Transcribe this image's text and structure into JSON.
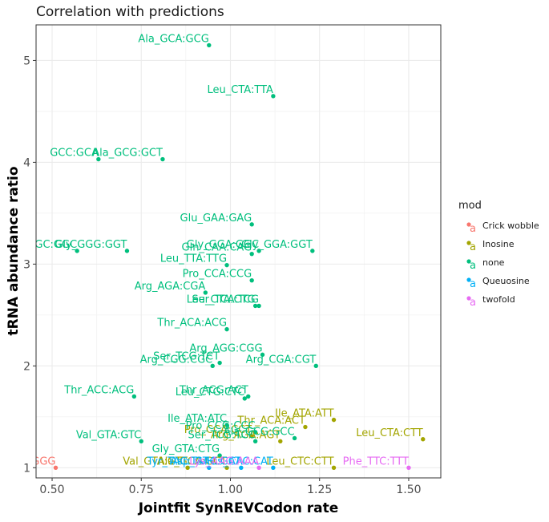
{
  "chart_data": {
    "type": "scatter",
    "title": "Correlation with predictions",
    "xlabel": "Jointfit SynREVCodon rate",
    "ylabel": "tRNA abundance ratio",
    "xlim": [
      0.455,
      1.59
    ],
    "ylim": [
      0.9,
      5.35
    ],
    "xticks": [
      0.5,
      0.75,
      1.0,
      1.25,
      1.5
    ],
    "xtick_labels": [
      "0.50",
      "0.75",
      "1.00",
      "1.25",
      "1.50"
    ],
    "yticks": [
      1,
      2,
      3,
      4,
      5
    ],
    "ytick_labels": [
      "1",
      "2",
      "3",
      "4",
      "5"
    ],
    "grid": true,
    "legend": {
      "title": "mod",
      "placement": "right",
      "key_glyph": "a",
      "entries": [
        {
          "name": "Crick wobble",
          "color": "#F8766D"
        },
        {
          "name": "Inosine",
          "color": "#A3A500"
        },
        {
          "name": "none",
          "color": "#00BF7D"
        },
        {
          "name": "Queuosine",
          "color": "#00B0F6"
        },
        {
          "name": "twofold",
          "color": "#E76BF3"
        }
      ]
    },
    "series": [
      {
        "name": "Crick wobble",
        "color": "#F8766D",
        "points": [
          {
            "x": 0.51,
            "y": 1.0,
            "label": "GGG:GGG"
          }
        ]
      },
      {
        "name": "Inosine",
        "color": "#A3A500",
        "points": [
          {
            "x": 1.54,
            "y": 1.28,
            "label": "Leu_CTA:CTT"
          },
          {
            "x": 1.29,
            "y": 1.47,
            "label": "Ile_ATA:ATT"
          },
          {
            "x": 1.21,
            "y": 1.4,
            "label": "Thr_ACA:ACT"
          },
          {
            "x": 1.14,
            "y": 1.26,
            "label": "Arg_AGA:AGT"
          },
          {
            "x": 1.06,
            "y": 1.31,
            "label": "Pro_CCA:CCT"
          },
          {
            "x": 1.29,
            "y": 1.0,
            "label": "Leu_CTC:CTT"
          },
          {
            "x": 0.88,
            "y": 1.0,
            "label": "Val_GTA:GTT"
          },
          {
            "x": 0.99,
            "y": 1.0,
            "label": "Ala_GCA:GCT"
          }
        ]
      },
      {
        "name": "none",
        "color": "#00BF7D",
        "points": [
          {
            "x": 0.94,
            "y": 5.15,
            "label": "Ala_GCA:GCG"
          },
          {
            "x": 1.12,
            "y": 4.65,
            "label": "Leu_CTA:TTA"
          },
          {
            "x": 0.81,
            "y": 4.03,
            "label": "Ala_GCG:GCT"
          },
          {
            "x": 0.63,
            "y": 4.03,
            "label": "GCC:GCA"
          },
          {
            "x": 1.06,
            "y": 3.39,
            "label": "Glu_GAA:GAG"
          },
          {
            "x": 1.23,
            "y": 3.13,
            "label": "Gly_GGA:GGT"
          },
          {
            "x": 1.08,
            "y": 3.13,
            "label": "Gly_GGA:GGC"
          },
          {
            "x": 1.06,
            "y": 3.1,
            "label": "Gln_CAA:CAG"
          },
          {
            "x": 0.71,
            "y": 3.13,
            "label": "Gly_GGG:GGT"
          },
          {
            "x": 0.57,
            "y": 3.13,
            "label": "GGC:GGC"
          },
          {
            "x": 0.99,
            "y": 2.99,
            "label": "Leu_TTA:TTG"
          },
          {
            "x": 1.06,
            "y": 2.84,
            "label": "Pro_CCA:CCG"
          },
          {
            "x": 0.93,
            "y": 2.72,
            "label": "Arg_AGA:CGA"
          },
          {
            "x": 1.08,
            "y": 2.59,
            "label": "Ser_TCA:TCG"
          },
          {
            "x": 1.07,
            "y": 2.59,
            "label": "Leu_CTA:CTG"
          },
          {
            "x": 0.99,
            "y": 2.36,
            "label": "Thr_ACA:ACG"
          },
          {
            "x": 1.09,
            "y": 2.11,
            "label": "Arg_AGG:CGG"
          },
          {
            "x": 1.24,
            "y": 2.0,
            "label": "Arg_CGA:CGT"
          },
          {
            "x": 0.97,
            "y": 2.03,
            "label": "Ser_TCG:TCT"
          },
          {
            "x": 0.95,
            "y": 2.0,
            "label": "Arg_CGG:CGC"
          },
          {
            "x": 0.73,
            "y": 1.7,
            "label": "Thr_ACC:ACG"
          },
          {
            "x": 1.05,
            "y": 1.7,
            "label": "Thr_ACG:ACT"
          },
          {
            "x": 1.04,
            "y": 1.68,
            "label": "Leu_CTG:CTC"
          },
          {
            "x": 0.99,
            "y": 1.42,
            "label": "Ile_ATA:ATC"
          },
          {
            "x": 1.07,
            "y": 1.35,
            "label": "Pro_CCG:CCC"
          },
          {
            "x": 1.18,
            "y": 1.29,
            "label": "Ala_GCG:GCC"
          },
          {
            "x": 0.75,
            "y": 1.26,
            "label": "Val_GTA:GTC"
          },
          {
            "x": 1.07,
            "y": 1.26,
            "label": "Ser_TCG:TCC"
          },
          {
            "x": 0.97,
            "y": 1.12,
            "label": "Gly_GTA:CTG"
          }
        ]
      },
      {
        "name": "Queuosine",
        "color": "#00B0F6",
        "points": [
          {
            "x": 0.94,
            "y": 1.0,
            "label": "Tyr_TAC:TAT"
          },
          {
            "x": 1.12,
            "y": 1.0,
            "label": "His_CAC:CAT"
          },
          {
            "x": 1.03,
            "y": 1.0,
            "label": "Asp_GAC:GAT"
          }
        ]
      },
      {
        "name": "twofold",
        "color": "#E76BF3",
        "points": [
          {
            "x": 1.5,
            "y": 1.0,
            "label": "Phe_TTC:TTT"
          },
          {
            "x": 1.08,
            "y": 1.0,
            "label": "Lys_AAG:AAA"
          }
        ]
      }
    ]
  }
}
